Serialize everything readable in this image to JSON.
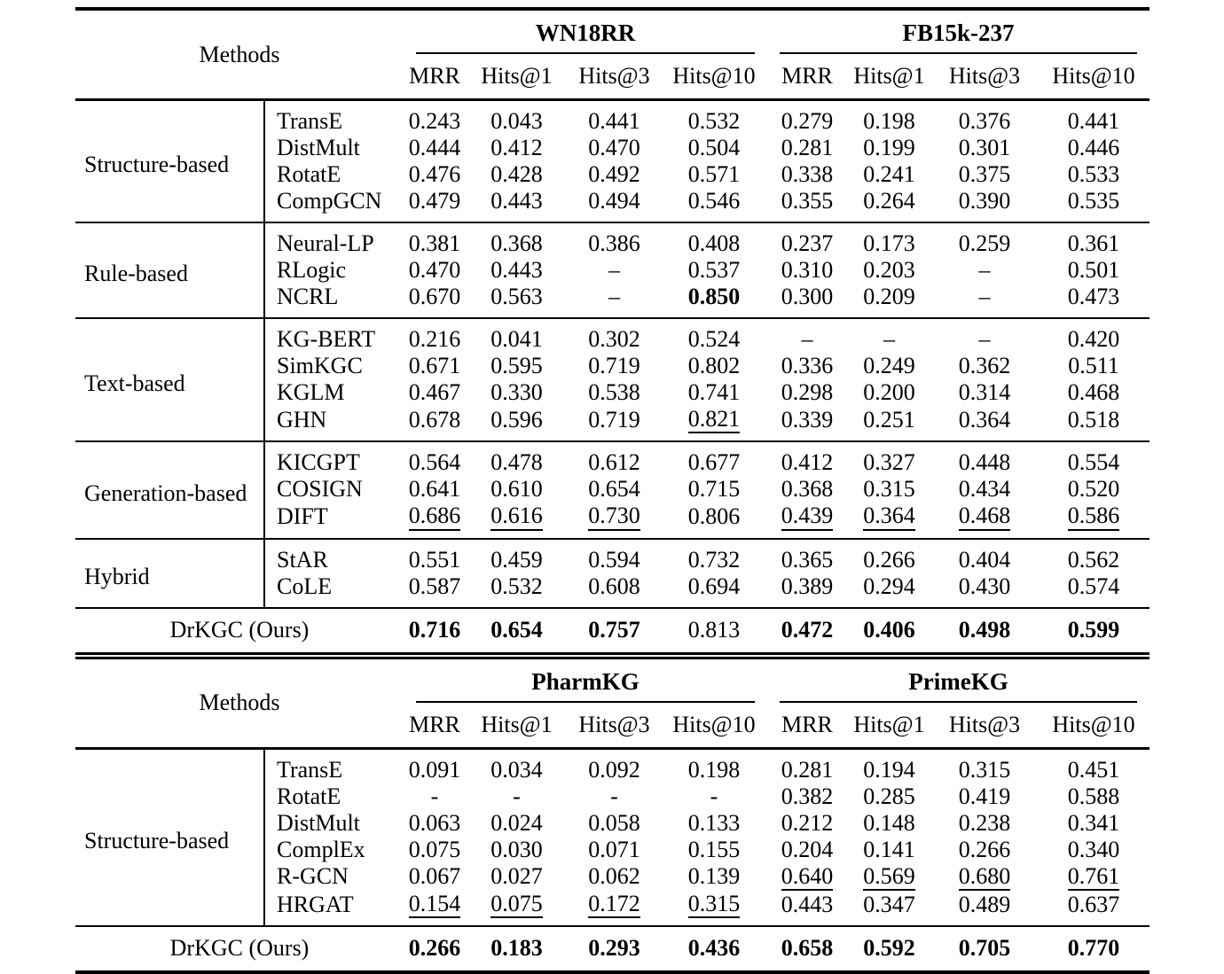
{
  "page": {
    "background": "#ffffff",
    "text_color": "#000000"
  },
  "tables": [
    {
      "id": "general-benchmarks",
      "methods_label": "Methods",
      "datasets": [
        "WN18RR",
        "FB15k-237"
      ],
      "metrics": [
        "MRR",
        "Hits@1",
        "Hits@3",
        "Hits@10"
      ],
      "groups": [
        {
          "name": "Structure-based",
          "rows": [
            {
              "method": "TransE",
              "values": [
                "0.243",
                "0.043",
                "0.441",
                "0.532",
                "0.279",
                "0.198",
                "0.376",
                "0.441"
              ]
            },
            {
              "method": "DistMult",
              "values": [
                "0.444",
                "0.412",
                "0.470",
                "0.504",
                "0.281",
                "0.199",
                "0.301",
                "0.446"
              ]
            },
            {
              "method": "RotatE",
              "values": [
                "0.476",
                "0.428",
                "0.492",
                "0.571",
                "0.338",
                "0.241",
                "0.375",
                "0.533"
              ]
            },
            {
              "method": "CompGCN",
              "values": [
                "0.479",
                "0.443",
                "0.494",
                "0.546",
                "0.355",
                "0.264",
                "0.390",
                "0.535"
              ]
            }
          ]
        },
        {
          "name": "Rule-based",
          "rows": [
            {
              "method": "Neural-LP",
              "values": [
                "0.381",
                "0.368",
                "0.386",
                "0.408",
                "0.237",
                "0.173",
                "0.259",
                "0.361"
              ]
            },
            {
              "method": "RLogic",
              "values": [
                "0.470",
                "0.443",
                "–",
                "0.537",
                "0.310",
                "0.203",
                "–",
                "0.501"
              ]
            },
            {
              "method": "NCRL",
              "values": [
                "0.670",
                "0.563",
                "–",
                {
                  "v": "0.850",
                  "style": "bold"
                },
                "0.300",
                "0.209",
                "–",
                "0.473"
              ]
            }
          ]
        },
        {
          "name": "Text-based",
          "rows": [
            {
              "method": "KG-BERT",
              "values": [
                "0.216",
                "0.041",
                "0.302",
                "0.524",
                "–",
                "–",
                "–",
                "0.420"
              ]
            },
            {
              "method": "SimKGC",
              "values": [
                "0.671",
                "0.595",
                "0.719",
                "0.802",
                "0.336",
                "0.249",
                "0.362",
                "0.511"
              ]
            },
            {
              "method": "KGLM",
              "values": [
                "0.467",
                "0.330",
                "0.538",
                "0.741",
                "0.298",
                "0.200",
                "0.314",
                "0.468"
              ]
            },
            {
              "method": "GHN",
              "values": [
                "0.678",
                "0.596",
                "0.719",
                {
                  "v": "0.821",
                  "style": "underline"
                },
                "0.339",
                "0.251",
                "0.364",
                "0.518"
              ]
            }
          ]
        },
        {
          "name": "Generation-based",
          "rows": [
            {
              "method": "KICGPT",
              "values": [
                "0.564",
                "0.478",
                "0.612",
                "0.677",
                "0.412",
                "0.327",
                "0.448",
                "0.554"
              ]
            },
            {
              "method": "COSIGN",
              "values": [
                "0.641",
                "0.610",
                "0.654",
                "0.715",
                "0.368",
                "0.315",
                "0.434",
                "0.520"
              ]
            },
            {
              "method": "DIFT",
              "values": [
                {
                  "v": "0.686",
                  "style": "underline"
                },
                {
                  "v": "0.616",
                  "style": "underline"
                },
                {
                  "v": "0.730",
                  "style": "underline"
                },
                "0.806",
                {
                  "v": "0.439",
                  "style": "underline"
                },
                {
                  "v": "0.364",
                  "style": "underline"
                },
                {
                  "v": "0.468",
                  "style": "underline"
                },
                {
                  "v": "0.586",
                  "style": "underline"
                }
              ]
            }
          ]
        },
        {
          "name": "Hybrid",
          "rows": [
            {
              "method": "StAR",
              "values": [
                "0.551",
                "0.459",
                "0.594",
                "0.732",
                "0.365",
                "0.266",
                "0.404",
                "0.562"
              ]
            },
            {
              "method": "CoLE",
              "values": [
                "0.587",
                "0.532",
                "0.608",
                "0.694",
                "0.389",
                "0.294",
                "0.430",
                "0.574"
              ]
            }
          ]
        }
      ],
      "footer": {
        "label": "DrKGC (Ours)",
        "values": [
          {
            "v": "0.716",
            "style": "bold"
          },
          {
            "v": "0.654",
            "style": "bold"
          },
          {
            "v": "0.757",
            "style": "bold"
          },
          "0.813",
          {
            "v": "0.472",
            "style": "bold"
          },
          {
            "v": "0.406",
            "style": "bold"
          },
          {
            "v": "0.498",
            "style": "bold"
          },
          {
            "v": "0.599",
            "style": "bold"
          }
        ]
      }
    },
    {
      "id": "biomedical-benchmarks",
      "methods_label": "Methods",
      "datasets": [
        "PharmKG",
        "PrimeKG"
      ],
      "metrics": [
        "MRR",
        "Hits@1",
        "Hits@3",
        "Hits@10"
      ],
      "groups": [
        {
          "name": "Structure-based",
          "rows": [
            {
              "method": "TransE",
              "values": [
                "0.091",
                "0.034",
                "0.092",
                "0.198",
                "0.281",
                "0.194",
                "0.315",
                "0.451"
              ]
            },
            {
              "method": "RotatE",
              "values": [
                "-",
                "-",
                "-",
                "-",
                "0.382",
                "0.285",
                "0.419",
                "0.588"
              ]
            },
            {
              "method": "DistMult",
              "values": [
                "0.063",
                "0.024",
                "0.058",
                "0.133",
                "0.212",
                "0.148",
                "0.238",
                "0.341"
              ]
            },
            {
              "method": "ComplEx",
              "values": [
                "0.075",
                "0.030",
                "0.071",
                "0.155",
                "0.204",
                "0.141",
                "0.266",
                "0.340"
              ]
            },
            {
              "method": "R-GCN",
              "values": [
                "0.067",
                "0.027",
                "0.062",
                "0.139",
                {
                  "v": "0.640",
                  "style": "underline"
                },
                {
                  "v": "0.569",
                  "style": "underline"
                },
                {
                  "v": "0.680",
                  "style": "underline"
                },
                {
                  "v": "0.761",
                  "style": "underline"
                }
              ]
            },
            {
              "method": "HRGAT",
              "values": [
                {
                  "v": "0.154",
                  "style": "underline"
                },
                {
                  "v": "0.075",
                  "style": "underline"
                },
                {
                  "v": "0.172",
                  "style": "underline"
                },
                {
                  "v": "0.315",
                  "style": "underline"
                },
                "0.443",
                "0.347",
                "0.489",
                "0.637"
              ]
            }
          ]
        }
      ],
      "footer": {
        "label": "DrKGC (Ours)",
        "values": [
          {
            "v": "0.266",
            "style": "bold"
          },
          {
            "v": "0.183",
            "style": "bold"
          },
          {
            "v": "0.293",
            "style": "bold"
          },
          {
            "v": "0.436",
            "style": "bold"
          },
          {
            "v": "0.658",
            "style": "bold"
          },
          {
            "v": "0.592",
            "style": "bold"
          },
          {
            "v": "0.705",
            "style": "bold"
          },
          {
            "v": "0.770",
            "style": "bold"
          }
        ]
      }
    }
  ]
}
